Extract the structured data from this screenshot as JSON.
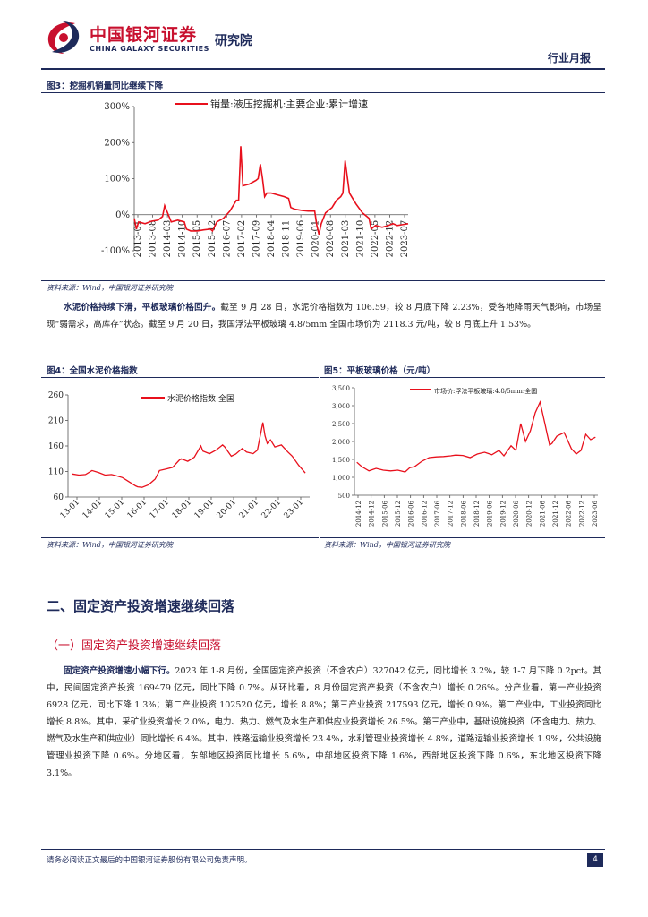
{
  "header": {
    "logo_cn": "中国银河证券",
    "logo_en": "CHINA GALAXY SECURITIES",
    "institute": "研究院",
    "report_type": "行业月报"
  },
  "figure3": {
    "title": "图3：挖掘机销量同比继续下降",
    "source": "资料来源：Wind，中国银河证券研究院"
  },
  "paragraph1": {
    "lead": "水泥价格持续下滑，平板玻璃价格回升。",
    "text": "截至 9 月 28 日，水泥价格指数为 106.59，较 8 月底下降 2.23%，受各地降雨天气影响，市场呈现“弱需求，高库存”状态。截至 9 月 20 日，我国浮法平板玻璃 4.8/5mm 全国市场价为 2118.3 元/吨，较 8 月底上升 1.53%。"
  },
  "figure4": {
    "title": "图4：全国水泥价格指数",
    "source": "资料来源：Wind，中国银河证券研究院"
  },
  "figure5": {
    "title": "图5：平板玻璃价格（元/吨）",
    "source": "资料来源：Wind，中国银河证券研究院"
  },
  "section": {
    "heading": "二、固定资产投资增速继续回落",
    "subheading": "（一）固定资产投资增速继续回落"
  },
  "paragraph2": {
    "lead": "固定资产投资增速小幅下行。",
    "text": "2023 年 1-8 月份，全国固定资产投资（不含农户）327042 亿元，同比增长 3.2%，较 1-7 月下降 0.2pct。其中，民间固定资产投资 169479 亿元，同比下降 0.7%。从环比看，8 月份固定资产投资（不含农户）增长 0.26%。分产业看，第一产业投资 6928 亿元，同比下降 1.3%；第二产业投资 102520 亿元，增长 8.8%；第三产业投资 217593 亿元，增长 0.9%。第二产业中，工业投资同比增长 8.8%。其中，采矿业投资增长 2.0%，电力、热力、燃气及水生产和供应业投资增长 26.5%。第三产业中，基础设施投资（不含电力、热力、燃气及水生产和供应业）同比增长 6.4%。其中，铁路运输业投资增长 23.4%，水利管理业投资增长 4.8%，道路运输业投资增长 1.9%，公共设施管理业投资下降 0.6%。分地区看，东部地区投资同比增长 5.6%，中部地区投资下降 1.6%，西部地区投资下降 0.6%，东北地区投资下降 3.1%。"
  },
  "footer": {
    "disclaimer": "请务必阅读正文最后的中国银河证券股份有限公司免责声明。",
    "page": "4"
  },
  "colors": {
    "navy": "#1e2a5a",
    "red": "#e8101c",
    "brand_red": "#c8102e"
  },
  "chart_data": [
    {
      "type": "line",
      "legend": "销量:液压挖掘机:主要企业:累计增速",
      "yticks": [
        "300%",
        "200%",
        "100%",
        "0%",
        "-100%"
      ],
      "ylim": [
        -100,
        300
      ],
      "xticks": [
        "2013-01",
        "2013-08",
        "2014-03",
        "2014-10",
        "2015-05",
        "2015-12",
        "2016-07",
        "2017-02",
        "2017-09",
        "2018-04",
        "2018-11",
        "2019-06",
        "2020-01",
        "2020-08",
        "2021-03",
        "2021-10",
        "2022-05",
        "2022-12",
        "2023-07"
      ],
      "series": [
        {
          "x": [
            "2013-01",
            "2013-02",
            "2013-03",
            "2013-06",
            "2013-09",
            "2013-12",
            "2014-01",
            "2014-02",
            "2014-03",
            "2014-06",
            "2014-09",
            "2014-12",
            "2015-01",
            "2015-03",
            "2015-06",
            "2015-09",
            "2015-12",
            "2016-01",
            "2016-03",
            "2016-06",
            "2016-09",
            "2016-12",
            "2017-01",
            "2017-02",
            "2017-03",
            "2017-06",
            "2017-09",
            "2017-10",
            "2017-11",
            "2017-12",
            "2018-01",
            "2018-02",
            "2018-04",
            "2018-07",
            "2018-10",
            "2018-12",
            "2019-01",
            "2019-03",
            "2019-06",
            "2019-09",
            "2019-12",
            "2020-01",
            "2020-02",
            "2020-03",
            "2020-05",
            "2020-08",
            "2020-10",
            "2020-12",
            "2021-01",
            "2021-02",
            "2021-04",
            "2021-07",
            "2021-10",
            "2021-12",
            "2022-01",
            "2022-02",
            "2022-04",
            "2022-07",
            "2022-10",
            "2022-12",
            "2023-02",
            "2023-04",
            "2023-07"
          ],
          "values": [
            -10,
            -40,
            -20,
            -25,
            -18,
            -15,
            -10,
            -5,
            25,
            -20,
            -15,
            -20,
            -40,
            -45,
            -45,
            -42,
            -40,
            -45,
            -20,
            -10,
            10,
            40,
            40,
            190,
            80,
            85,
            95,
            100,
            140,
            100,
            50,
            60,
            60,
            55,
            50,
            45,
            20,
            15,
            12,
            10,
            10,
            -30,
            -55,
            -25,
            5,
            20,
            40,
            50,
            60,
            150,
            60,
            30,
            5,
            -5,
            -10,
            -40,
            -30,
            -35,
            -30,
            -25,
            -30,
            -28,
            -25
          ]
        }
      ]
    },
    {
      "type": "line",
      "legend": "水泥价格指数:全国",
      "yticks": [
        "260",
        "210",
        "160",
        "110",
        "60"
      ],
      "ylim": [
        60,
        260
      ],
      "xticks": [
        "13-01",
        "14-01",
        "15-01",
        "16-01",
        "17-01",
        "18-01",
        "19-01",
        "20-01",
        "21-01",
        "22-01",
        "23-01"
      ],
      "series": [
        {
          "x": [
            2013.0,
            2013.3,
            2013.6,
            2013.9,
            2014.2,
            2014.5,
            2014.8,
            2015.0,
            2015.3,
            2015.6,
            2015.9,
            2016.0,
            2016.2,
            2016.5,
            2016.8,
            2017.0,
            2017.3,
            2017.6,
            2017.9,
            2018.0,
            2018.3,
            2018.6,
            2018.9,
            2019.0,
            2019.3,
            2019.6,
            2019.9,
            2020.0,
            2020.3,
            2020.5,
            2020.8,
            2021.0,
            2021.3,
            2021.5,
            2021.75,
            2021.85,
            2021.95,
            2022.1,
            2022.3,
            2022.6,
            2022.9,
            2023.1,
            2023.4,
            2023.7
          ],
          "values": [
            105,
            103,
            104,
            112,
            108,
            103,
            104,
            102,
            98,
            90,
            82,
            80,
            79,
            84,
            95,
            112,
            115,
            118,
            132,
            135,
            130,
            138,
            160,
            150,
            145,
            152,
            162,
            158,
            140,
            144,
            155,
            148,
            145,
            152,
            206,
            180,
            165,
            172,
            158,
            162,
            148,
            140,
            122,
            107
          ]
        }
      ]
    },
    {
      "type": "line",
      "legend": "市场价:浮法平板玻璃:4.8/5mm:全国",
      "yticks": [
        "3,500",
        "3,000",
        "2,500",
        "2,000",
        "1,500",
        "1,000",
        "500"
      ],
      "ylim": [
        500,
        3500
      ],
      "xticks": [
        "2014-12",
        "2014-12",
        "2015-06",
        "2015-12",
        "2016-06",
        "2016-12",
        "2017-06",
        "2017-12",
        "2018-06",
        "2018-12",
        "2019-06",
        "2019-12",
        "2020-06",
        "2020-12",
        "2021-06",
        "2021-12",
        "2022-06",
        "2022-12",
        "2023-06"
      ],
      "series": [
        {
          "x": [
            2013.9,
            2014.1,
            2014.4,
            2014.7,
            2015.0,
            2015.3,
            2015.6,
            2015.9,
            2016.1,
            2016.3,
            2016.6,
            2016.9,
            2017.2,
            2017.5,
            2017.8,
            2018.0,
            2018.3,
            2018.6,
            2018.9,
            2019.2,
            2019.5,
            2019.8,
            2020.0,
            2020.3,
            2020.5,
            2020.7,
            2020.9,
            2021.1,
            2021.3,
            2021.5,
            2021.6,
            2021.7,
            2021.8,
            2021.9,
            2022.0,
            2022.2,
            2022.5,
            2022.8,
            2023.0,
            2023.2,
            2023.4,
            2023.6,
            2023.8
          ],
          "values": [
            1420,
            1300,
            1180,
            1250,
            1200,
            1180,
            1200,
            1150,
            1270,
            1300,
            1450,
            1550,
            1570,
            1580,
            1600,
            1620,
            1610,
            1550,
            1650,
            1700,
            1630,
            1750,
            1600,
            1880,
            1750,
            2500,
            2000,
            2300,
            2800,
            3100,
            2800,
            2500,
            2200,
            1900,
            1950,
            2150,
            2250,
            1800,
            1650,
            1750,
            2200,
            2050,
            2120
          ]
        }
      ]
    }
  ]
}
